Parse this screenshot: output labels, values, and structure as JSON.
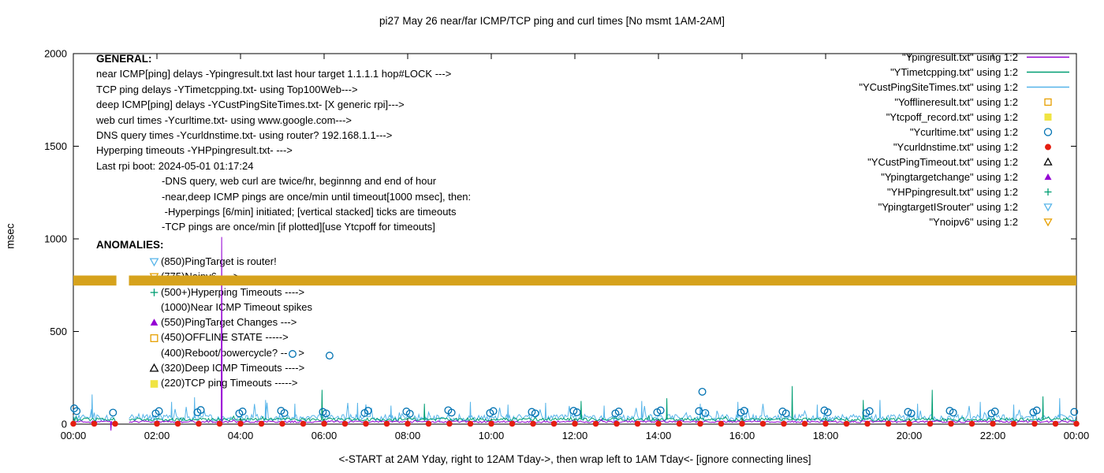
{
  "chart_data": {
    "type": "line",
    "title": "pi27 May 26  near/far ICMP/TCP ping and curl times [No msmt 1AM-2AM]",
    "xlabel": "<-START at 2AM Yday, right to 12AM Tday->, then wrap left to 1AM Tday<- [ignore connecting lines]",
    "ylabel": "msec",
    "ylim": [
      0,
      2000
    ],
    "y_ticks": [
      0,
      500,
      1000,
      1500,
      2000
    ],
    "x_hours": [
      0,
      24
    ],
    "x_tick_interval_hours": 2,
    "x_ticks": [
      "00:00",
      "02:00",
      "04:00",
      "06:00",
      "08:00",
      "10:00",
      "12:00",
      "14:00",
      "16:00",
      "18:00",
      "20:00",
      "22:00",
      "00:00"
    ],
    "no_measurement_gap_hours": [
      1.03,
      1.33
    ],
    "grid": false,
    "series": [
      {
        "name": "Ypingresult.txt",
        "style": "line",
        "color": "#9400d3",
        "baseline_msec": 13,
        "noise_msec": 5,
        "spiky": false,
        "spikes": [
          [
            0.9,
            -35
          ],
          [
            3.55,
            1010
          ]
        ]
      },
      {
        "name": "YTimetcpping.txt",
        "style": "line",
        "color": "#009e73",
        "baseline_msec": 25,
        "noise_msec": 9,
        "spiky": false,
        "spikes": [
          [
            5.95,
            185
          ],
          [
            8.4,
            110
          ],
          [
            12.15,
            125
          ],
          [
            14.2,
            140
          ],
          [
            17.2,
            205
          ],
          [
            18.9,
            130
          ],
          [
            20.55,
            185
          ],
          [
            23.2,
            150
          ]
        ]
      },
      {
        "name": "YCustPingSiteTimes.txt",
        "style": "line",
        "color": "#56b4e9",
        "baseline_msec": 34,
        "noise_msec": 18,
        "spiky": true,
        "spikes": [
          [
            0.45,
            160
          ],
          [
            2.35,
            120
          ],
          [
            2.9,
            145
          ],
          [
            4.6,
            130
          ],
          [
            5.3,
            110
          ],
          [
            6.8,
            115
          ],
          [
            7.6,
            100
          ],
          [
            9.5,
            120
          ],
          [
            10.4,
            105
          ],
          [
            11.3,
            115
          ],
          [
            12.7,
            100
          ],
          [
            13.6,
            125
          ],
          [
            15.0,
            110
          ],
          [
            15.9,
            120
          ],
          [
            17.8,
            105
          ],
          [
            19.3,
            130
          ],
          [
            20.2,
            110
          ],
          [
            21.7,
            120
          ],
          [
            22.5,
            105
          ],
          [
            23.6,
            140
          ]
        ]
      },
      {
        "name": "Yofflineresult.txt",
        "style": "points",
        "marker": "open-square",
        "color": "#e69f00",
        "points": []
      },
      {
        "name": "Ytcpoff_record.txt",
        "style": "points",
        "marker": "filled-square",
        "color": "#f0e442",
        "points": []
      },
      {
        "name": "Ycurltime.txt",
        "style": "points",
        "marker": "open-circle",
        "color": "#0072b2",
        "points": [
          [
            0.02,
            85
          ],
          [
            0.08,
            70
          ],
          [
            0.95,
            62
          ],
          [
            1.97,
            58
          ],
          [
            2.05,
            70
          ],
          [
            2.97,
            64
          ],
          [
            3.05,
            76
          ],
          [
            3.97,
            58
          ],
          [
            4.05,
            68
          ],
          [
            4.97,
            72
          ],
          [
            5.05,
            60
          ],
          [
            5.97,
            66
          ],
          [
            6.05,
            58
          ],
          [
            6.13,
            370
          ],
          [
            6.97,
            60
          ],
          [
            7.05,
            72
          ],
          [
            7.97,
            68
          ],
          [
            8.05,
            56
          ],
          [
            8.97,
            75
          ],
          [
            9.05,
            62
          ],
          [
            9.97,
            60
          ],
          [
            10.05,
            70
          ],
          [
            10.97,
            66
          ],
          [
            11.05,
            58
          ],
          [
            11.97,
            72
          ],
          [
            12.05,
            64
          ],
          [
            12.97,
            58
          ],
          [
            13.05,
            68
          ],
          [
            13.97,
            64
          ],
          [
            14.05,
            74
          ],
          [
            14.97,
            70
          ],
          [
            15.05,
            175
          ],
          [
            15.12,
            60
          ],
          [
            15.97,
            62
          ],
          [
            16.05,
            72
          ],
          [
            16.97,
            68
          ],
          [
            17.05,
            58
          ],
          [
            17.97,
            74
          ],
          [
            18.05,
            64
          ],
          [
            18.97,
            60
          ],
          [
            19.05,
            70
          ],
          [
            19.97,
            66
          ],
          [
            20.05,
            58
          ],
          [
            20.97,
            72
          ],
          [
            21.05,
            62
          ],
          [
            21.97,
            58
          ],
          [
            22.05,
            68
          ],
          [
            22.97,
            64
          ],
          [
            23.05,
            74
          ],
          [
            23.95,
            66
          ]
        ]
      },
      {
        "name": "Ycurldnstime.txt",
        "style": "points",
        "marker": "filled-circle",
        "color": "#e51e10",
        "pattern": {
          "start": 0,
          "end": 24,
          "interval": 0.5,
          "value": 2,
          "skip": [
            1.04,
            1.96
          ]
        }
      },
      {
        "name": "YCustPingTimeout.txt",
        "style": "points",
        "marker": "open-triangle-up",
        "color": "#000000",
        "points": []
      },
      {
        "name": "Ypingtargetchange",
        "style": "points",
        "marker": "filled-triangle-up",
        "color": "#9400d3",
        "points": []
      },
      {
        "name": "YHPpingresult.txt",
        "style": "points",
        "marker": "plus",
        "color": "#009e73",
        "points": []
      },
      {
        "name": "YpingtargetISrouter",
        "style": "points",
        "marker": "open-triangle-down",
        "color": "#56b4e9",
        "points": []
      },
      {
        "name": "Ynoipv6",
        "style": "band",
        "marker": "open-triangle-down",
        "color": "#d6a21c",
        "center_msec": 775,
        "half_msec": 27,
        "segments_hours": [
          [
            0,
            1.03
          ],
          [
            1.33,
            24
          ]
        ]
      }
    ]
  },
  "legend": {
    "items": [
      {
        "label": "\"Ypingresult.txt\" using 1:2",
        "marker": "line-sample",
        "color": "#9400d3"
      },
      {
        "label": "\"YTimetcpping.txt\" using 1:2",
        "marker": "line-sample",
        "color": "#009e73"
      },
      {
        "label": "\"YCustPingSiteTimes.txt\" using 1:2",
        "marker": "line-sample",
        "color": "#56b4e9"
      },
      {
        "label": "\"Yofflineresult.txt\" using 1:2",
        "marker": "open-square",
        "color": "#e69f00"
      },
      {
        "label": "\"Ytcpoff_record.txt\" using 1:2",
        "marker": "filled-square",
        "color": "#f0e442"
      },
      {
        "label": "\"Ycurltime.txt\" using 1:2",
        "marker": "open-circle",
        "color": "#0072b2"
      },
      {
        "label": "\"Ycurldnstime.txt\" using 1:2",
        "marker": "filled-circle",
        "color": "#e51e10"
      },
      {
        "label": "\"YCustPingTimeout.txt\" using 1:2",
        "marker": "open-triangle-up",
        "color": "#000000"
      },
      {
        "label": "\"Ypingtargetchange\" using 1:2",
        "marker": "filled-triangle-up",
        "color": "#9400d3"
      },
      {
        "label": "\"YHPpingresult.txt\" using 1:2",
        "marker": "plus",
        "color": "#009e73"
      },
      {
        "label": "\"YpingtargetISrouter\" using 1:2",
        "marker": "open-triangle-down",
        "color": "#56b4e9"
      },
      {
        "label": "\"Ynoipv6\" using 1:2",
        "marker": "open-triangle-down",
        "color": "#e69f00"
      }
    ]
  },
  "annotations": {
    "general_header": "GENERAL:",
    "general_lines": [
      "near ICMP[ping] delays -Ypingresult.txt last hour target 1.1.1.1 hop#LOCK --->",
      "TCP ping delays -YTimetcpping.txt- using Top100Web--->",
      "deep ICMP[ping] delays -YCustPingSiteTimes.txt- [X generic rpi]--->",
      "web curl times -Ycurltime.txt- using www.google.com--->",
      "DNS query times -Ycurldnstime.txt- using router? 192.168.1.1--->",
      "Hyperping timeouts -YHPpingresult.txt- --->",
      "Last rpi boot: 2024-05-01 01:17:24"
    ],
    "general_sub_lines": [
      "-DNS query, web curl are twice/hr, beginnng and end of hour",
      "-near,deep ICMP pings are once/min until timeout[1000 msec], then:",
      " -Hyperpings [6/min] initiated; [vertical stacked] ticks are timeouts",
      "-TCP pings are once/min [if plotted][use Ytcpoff for timeouts]"
    ],
    "anomalies_header": "ANOMALIES:",
    "anomaly_lines": [
      {
        "marker": "open-triangle-down",
        "color": "#56b4e9",
        "text": "(850)PingTarget is router!"
      },
      {
        "marker": "open-triangle-down",
        "color": "#e69f00",
        "text": "(775)Noipv6 ---->"
      },
      {
        "marker": "plus",
        "color": "#009e73",
        "text": "(500+)Hyperping Timeouts ---->"
      },
      {
        "marker": "none",
        "color": "",
        "text": "(1000)Near ICMP Timeout spikes"
      },
      {
        "marker": "filled-triangle-up",
        "color": "#9400d3",
        "text": "(550)PingTarget Changes --->"
      },
      {
        "marker": "open-square",
        "color": "#e69f00",
        "text": "(450)OFFLINE STATE ----->"
      },
      {
        "marker": "none",
        "color": "",
        "text": "(400)Reboot/powercycle? --",
        "trailing_marker": "open-circle",
        "trailing_color": "#0072b2",
        "trailing_text": ">"
      },
      {
        "marker": "open-triangle-up",
        "color": "#000000",
        "text": "(320)Deep ICMP Timeouts ---->"
      },
      {
        "marker": "filled-square",
        "color": "#f0e442",
        "text": "(220)TCP ping Timeouts ----->"
      }
    ]
  }
}
